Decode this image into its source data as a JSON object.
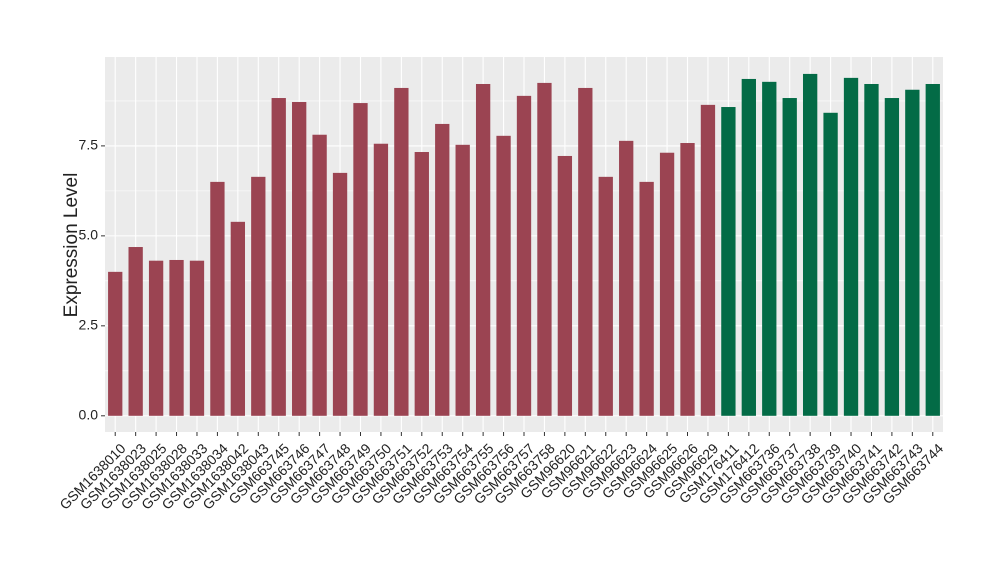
{
  "chart_data": {
    "type": "bar",
    "y_label": "Expression Level",
    "categories": [
      "GSM1638010",
      "GSM1638023",
      "GSM1638025",
      "GSM1638028",
      "GSM1638033",
      "GSM1638034",
      "GSM1638042",
      "GSM1638043",
      "GSM663745",
      "GSM663746",
      "GSM663747",
      "GSM663748",
      "GSM663749",
      "GSM663750",
      "GSM663751",
      "GSM663752",
      "GSM663753",
      "GSM663754",
      "GSM663755",
      "GSM663756",
      "GSM663757",
      "GSM663758",
      "GSM96620",
      "GSM96621",
      "GSM96622",
      "GSM96623",
      "GSM96624",
      "GSM96625",
      "GSM96626",
      "GSM96629",
      "GSM176411",
      "GSM176412",
      "GSM663736",
      "GSM663737",
      "GSM663738",
      "GSM663739",
      "GSM663740",
      "GSM663741",
      "GSM663742",
      "GSM663743",
      "GSM663744"
    ],
    "values": [
      4.0,
      4.69,
      4.31,
      4.33,
      4.31,
      6.5,
      5.39,
      6.64,
      8.83,
      8.72,
      7.81,
      6.75,
      8.69,
      7.56,
      9.11,
      7.33,
      8.11,
      7.53,
      9.22,
      7.78,
      8.89,
      9.25,
      7.22,
      9.11,
      6.64,
      7.64,
      6.5,
      7.31,
      7.58,
      8.64,
      8.58,
      9.36,
      9.28,
      8.83,
      9.5,
      8.42,
      9.39,
      9.22,
      8.83,
      9.06,
      9.22
    ],
    "colors": [
      "#9b4452",
      "#9b4452",
      "#9b4452",
      "#9b4452",
      "#9b4452",
      "#9b4452",
      "#9b4452",
      "#9b4452",
      "#9b4452",
      "#9b4452",
      "#9b4452",
      "#9b4452",
      "#9b4452",
      "#9b4452",
      "#9b4452",
      "#9b4452",
      "#9b4452",
      "#9b4452",
      "#9b4452",
      "#9b4452",
      "#9b4452",
      "#9b4452",
      "#9b4452",
      "#9b4452",
      "#9b4452",
      "#9b4452",
      "#9b4452",
      "#9b4452",
      "#9b4452",
      "#9b4452",
      "#036b46",
      "#036b46",
      "#036b46",
      "#036b46",
      "#036b46",
      "#036b46",
      "#036b46",
      "#036b46",
      "#036b46",
      "#036b46",
      "#036b46"
    ],
    "ylim": [
      -0.45,
      9.97
    ],
    "yticks": [
      {
        "value": 0,
        "label": "0.0"
      },
      {
        "value": 2.5,
        "label": "2.5"
      },
      {
        "value": 5,
        "label": "5.0"
      },
      {
        "value": 7.5,
        "label": "7.5"
      }
    ],
    "grid": true
  }
}
